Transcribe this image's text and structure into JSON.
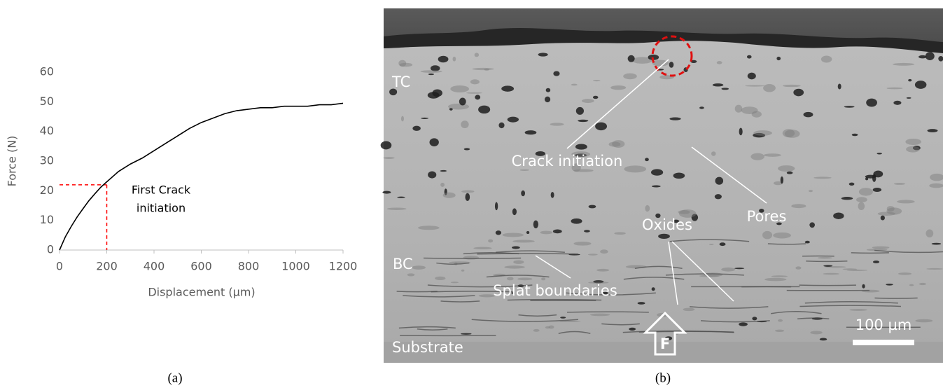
{
  "chart_data": {
    "type": "line",
    "y_label": "Force (N)",
    "x_label": "Displacement (µm)",
    "x": [
      0,
      25,
      50,
      75,
      100,
      125,
      150,
      175,
      200,
      250,
      300,
      350,
      400,
      450,
      500,
      550,
      600,
      650,
      700,
      750,
      800,
      850,
      900,
      950,
      1000,
      1050,
      1100,
      1150,
      1200
    ],
    "values": [
      0,
      4.5,
      8,
      11.2,
      14,
      16.7,
      19,
      21.2,
      23,
      26.5,
      29,
      31,
      33.5,
      36,
      38.5,
      41,
      43,
      44.5,
      46,
      47,
      47.5,
      48,
      48,
      48.5,
      48.5,
      48.5,
      49,
      49,
      49.5
    ],
    "color": "#000000",
    "xlim": [
      0,
      1200
    ],
    "xticks": [
      0,
      200,
      400,
      600,
      800,
      1000,
      1200
    ],
    "ylim": [
      0,
      60
    ],
    "yticks": [
      0,
      10,
      20,
      30,
      40,
      50,
      60
    ],
    "grid": false,
    "marker": {
      "x": 200,
      "y": 22,
      "color": "#ff0000"
    },
    "annotation": [
      "First Crack",
      "initiation"
    ]
  },
  "panel_labels": [
    "(a)",
    "(b)"
  ],
  "micrograph": {
    "labels": [
      "TC",
      "Crack initiation",
      "Pores",
      "Oxides",
      "BC",
      "Splat boundaries",
      "Substrate"
    ],
    "force_label": "F",
    "scale_bar": "100 µm"
  }
}
